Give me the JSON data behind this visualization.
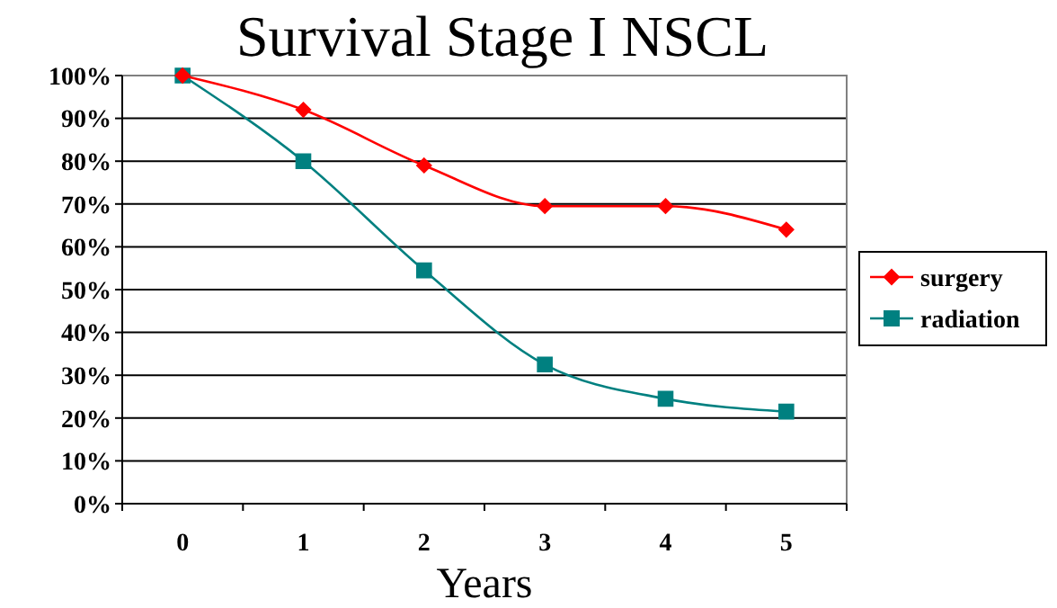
{
  "chart_data": {
    "type": "line",
    "title": "Survival Stage I NSCL",
    "xlabel": "Years",
    "categories": [
      "0",
      "1",
      "2",
      "3",
      "4",
      "5"
    ],
    "series": [
      {
        "name": "surgery",
        "color": "#ff0000",
        "marker": "diamond",
        "values": [
          100,
          92,
          79,
          69.5,
          69.5,
          64
        ]
      },
      {
        "name": "radiation",
        "color": "#008080",
        "marker": "square",
        "values": [
          100,
          80,
          54.5,
          32.5,
          24.5,
          21.5
        ]
      }
    ],
    "ylim": [
      0,
      100
    ],
    "yticks": [
      {
        "value": 0,
        "label": "0%"
      },
      {
        "value": 10,
        "label": "10%"
      },
      {
        "value": 20,
        "label": "20%"
      },
      {
        "value": 30,
        "label": "30%"
      },
      {
        "value": 40,
        "label": "40%"
      },
      {
        "value": 50,
        "label": "50%"
      },
      {
        "value": 60,
        "label": "60%"
      },
      {
        "value": 70,
        "label": "70%"
      },
      {
        "value": 80,
        "label": "80%"
      },
      {
        "value": 90,
        "label": "90%"
      },
      {
        "value": 100,
        "label": "100%"
      }
    ],
    "grid": "y",
    "legend": "right",
    "line_style": "solid"
  }
}
